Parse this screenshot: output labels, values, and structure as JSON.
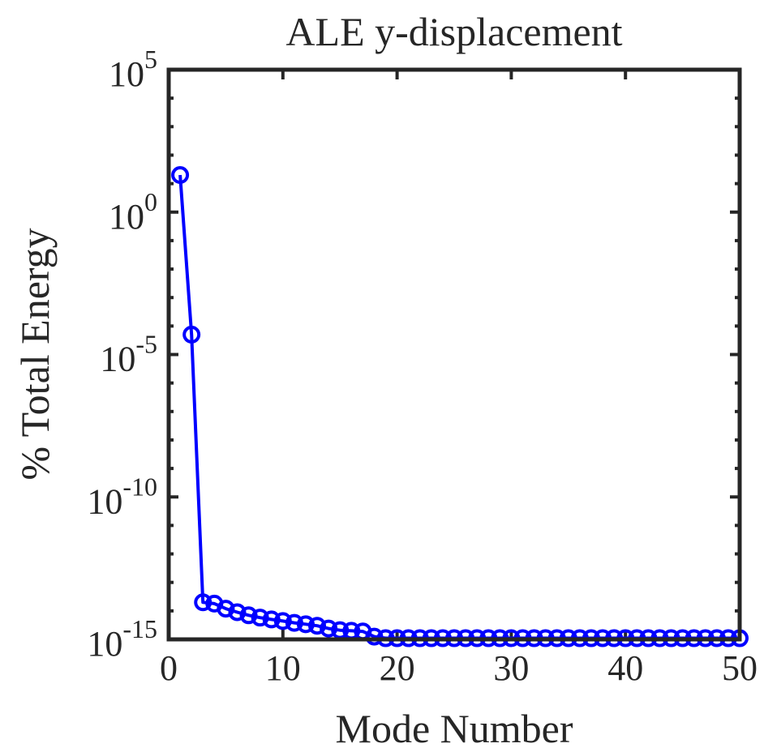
{
  "chart_data": {
    "type": "line",
    "title": "ALE y-displacement",
    "xlabel": "Mode Number",
    "ylabel": "% Total Energy",
    "xlim": [
      0,
      50
    ],
    "yscale": "log",
    "ylim": [
      1e-15,
      100000.0
    ],
    "xticks": [
      0,
      10,
      20,
      30,
      40,
      50
    ],
    "xtick_labels": [
      "0",
      "10",
      "20",
      "30",
      "40",
      "50"
    ],
    "yticks": [
      {
        "value": 100000.0,
        "base": "10",
        "exp": "5"
      },
      {
        "value": 1,
        "base": "10",
        "exp": "0"
      },
      {
        "value": 1e-05,
        "base": "10",
        "exp": "-5"
      },
      {
        "value": 1e-10,
        "base": "10",
        "exp": "-10"
      },
      {
        "value": 1e-15,
        "base": "10",
        "exp": "-15"
      }
    ],
    "grid": false,
    "box": true,
    "marker": "circle",
    "color": "#0000ff",
    "series": [
      {
        "x": [
          1,
          2,
          3,
          4,
          5,
          6,
          7,
          8,
          9,
          10,
          11,
          12,
          13,
          14,
          15,
          16,
          17,
          18,
          19,
          20,
          21,
          22,
          23,
          24,
          25,
          26,
          27,
          28,
          29,
          30,
          31,
          32,
          33,
          34,
          35,
          36,
          37,
          38,
          39,
          40,
          41,
          42,
          43,
          44,
          45,
          46,
          47,
          48,
          49,
          50
        ],
        "y": [
          20,
          5e-05,
          2e-14,
          1.8e-14,
          1.2e-14,
          9e-15,
          7e-15,
          5.8e-15,
          5e-15,
          4.4e-15,
          3.8e-15,
          3.4e-15,
          3e-15,
          2.4e-15,
          2.1e-15,
          2e-15,
          1.9e-15,
          1.25e-15,
          1.1e-15,
          1.1e-15,
          1.1e-15,
          1.1e-15,
          1.1e-15,
          1.1e-15,
          1.1e-15,
          1.1e-15,
          1.1e-15,
          1.1e-15,
          1.1e-15,
          1.1e-15,
          1.1e-15,
          1.1e-15,
          1.1e-15,
          1.1e-15,
          1.1e-15,
          1.1e-15,
          1.1e-15,
          1.1e-15,
          1.1e-15,
          1.1e-15,
          1.1e-15,
          1.1e-15,
          1.1e-15,
          1.1e-15,
          1.1e-15,
          1.1e-15,
          1.1e-15,
          1.1e-15,
          1.1e-15,
          1.1e-15
        ]
      }
    ]
  }
}
